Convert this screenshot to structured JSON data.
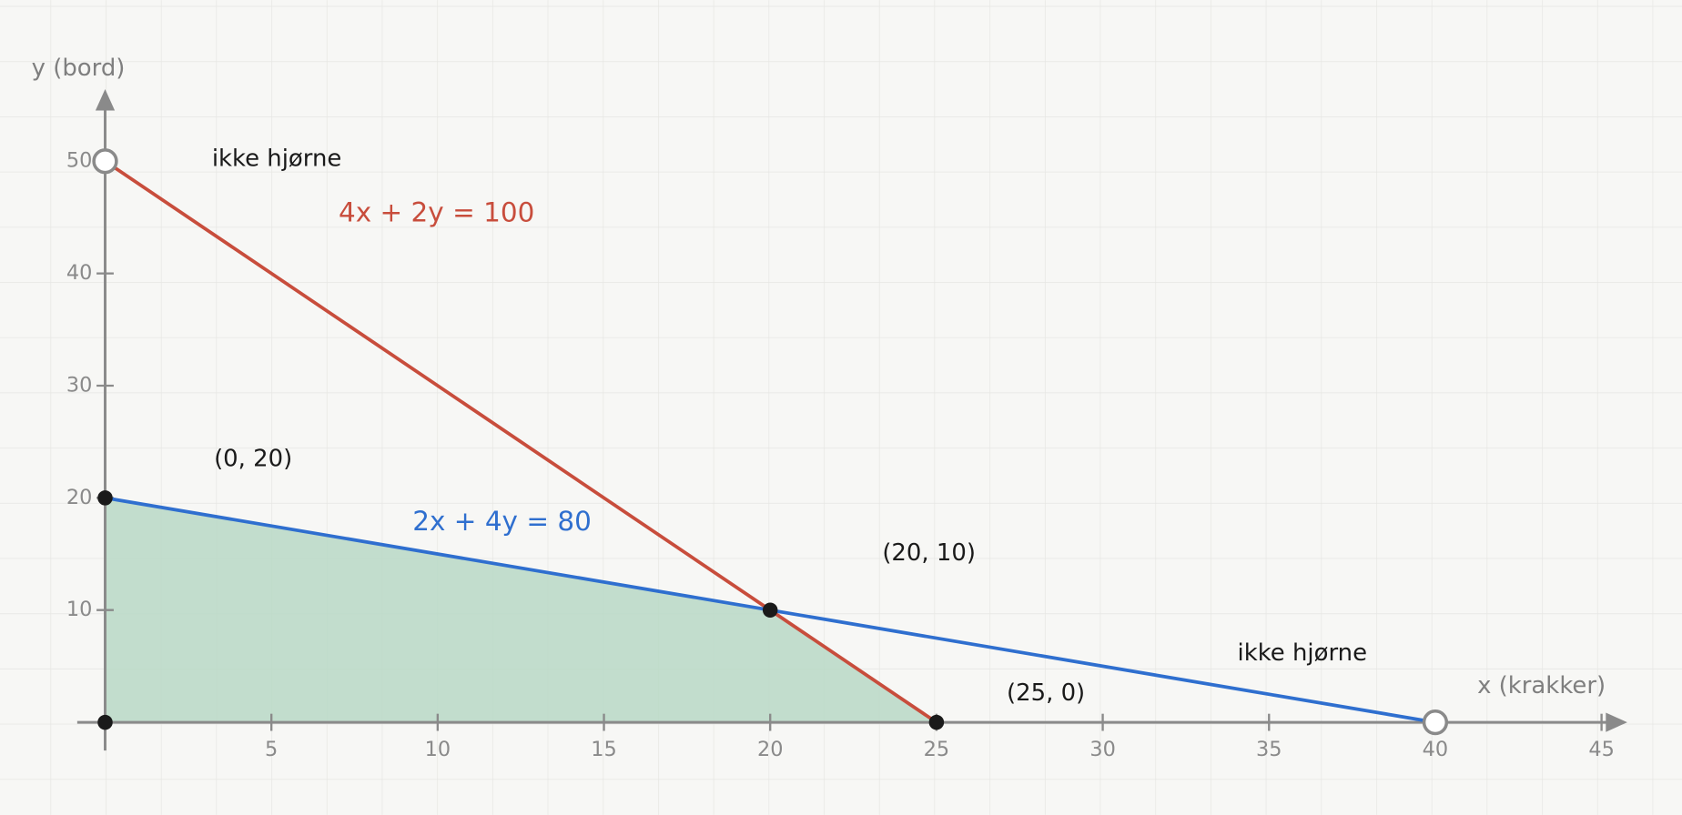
{
  "chart_data": {
    "type": "line",
    "x_label": "x (krakker)",
    "y_label": "y (bord)",
    "xlim": [
      -1,
      46
    ],
    "ylim": [
      -2,
      57
    ],
    "xticks": [
      5,
      10,
      15,
      20,
      25,
      30,
      35,
      40,
      45
    ],
    "yticks": [
      10,
      20,
      30,
      40,
      50
    ],
    "series": [
      {
        "name": "4x + 2y = 100",
        "color": "#c84d3c",
        "x": [
          0,
          25
        ],
        "values": [
          50,
          0
        ]
      },
      {
        "name": "2x + 4y = 80",
        "color": "#2f6fcf",
        "x": [
          0,
          40
        ],
        "values": [
          20,
          0
        ]
      }
    ],
    "region": {
      "color": "#b9d8c6",
      "x": [
        0,
        0,
        20,
        25
      ],
      "values": [
        0,
        20,
        10,
        0
      ]
    },
    "points": [
      {
        "x": 0,
        "y": 0,
        "filled": true
      },
      {
        "x": 0,
        "y": 20,
        "filled": true,
        "label": "(0, 20)"
      },
      {
        "x": 20,
        "y": 10,
        "filled": true,
        "label": "(20, 10)"
      },
      {
        "x": 25,
        "y": 0,
        "filled": true,
        "label": "(25, 0)"
      },
      {
        "x": 0,
        "y": 50,
        "filled": false,
        "label": "ikke hjørne"
      },
      {
        "x": 40,
        "y": 0,
        "filled": false,
        "label": "ikke hjørne"
      }
    ]
  }
}
